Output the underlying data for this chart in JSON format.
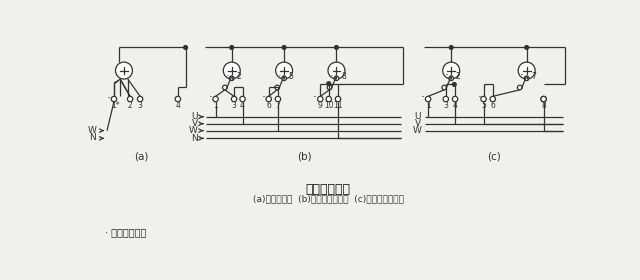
{
  "title": "电度表接线图",
  "subtitle": "(a)单相电度表  (b)三相四线电度表  (c)三相三线电度表",
  "footer": "· 电度表接线图",
  "bg_color": "#f0f0ec",
  "line_color": "#333333",
  "label_a": "(a)",
  "label_b": "(b)",
  "label_c": "(c)",
  "figsize": [
    6.4,
    2.8
  ],
  "dpi": 100
}
